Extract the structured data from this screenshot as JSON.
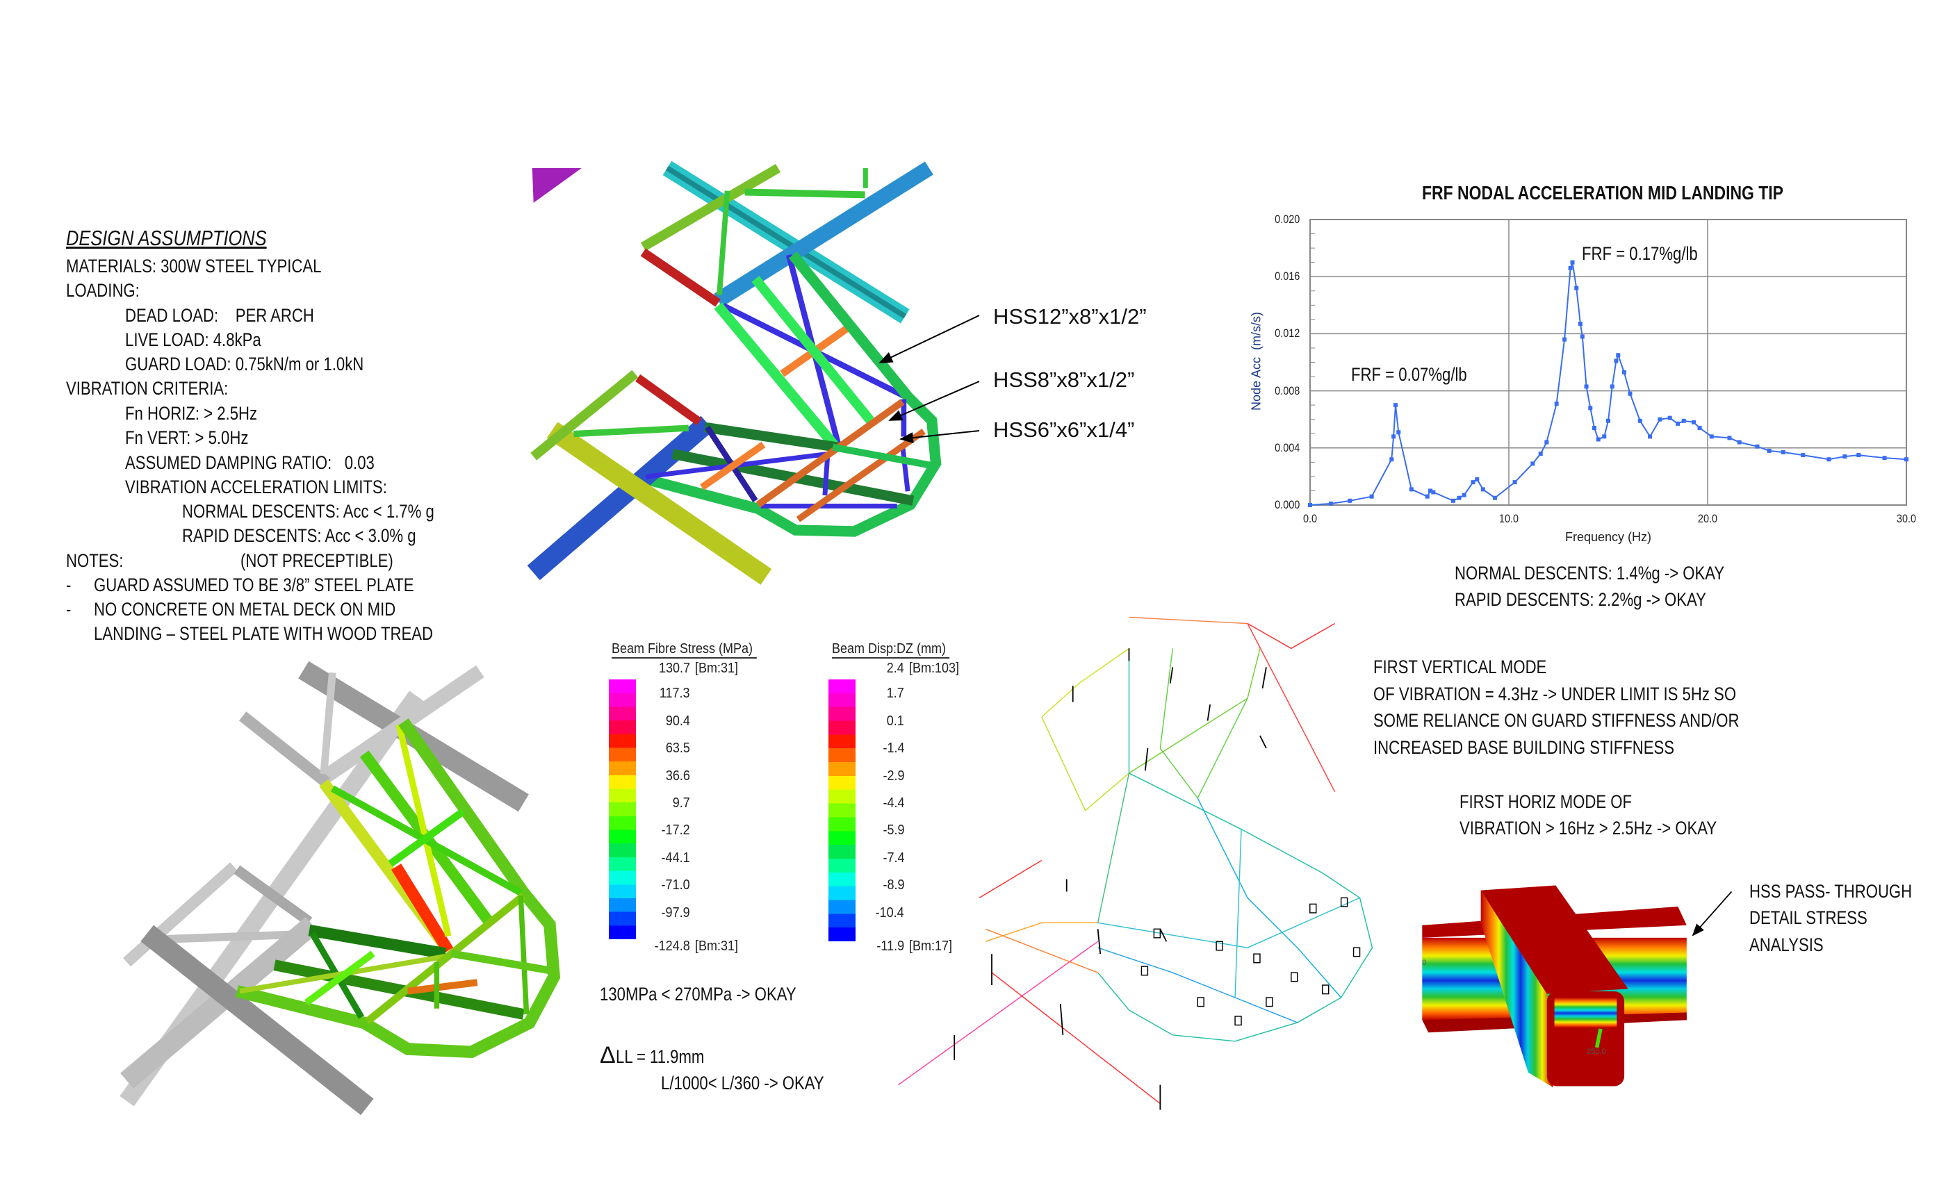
{
  "design_assumptions": {
    "title": "DESIGN ASSUMPTIONS",
    "lines": [
      "MATERIALS: 300W STEEL TYPICAL",
      "LOADING:",
      "DEAD LOAD:    PER ARCH",
      "LIVE LOAD: 4.8kPa",
      "GUARD LOAD: 0.75kN/m or 1.0kN",
      "VIBRATION CRITERIA:",
      "Fn HORIZ: > 2.5Hz",
      "Fn VERT: > 5.0Hz",
      "ASSUMED DAMPING RATIO:   0.03",
      "VIBRATION ACCELERATION LIMITS:",
      "NORMAL DESCENTS: Acc < 1.7% g",
      "RAPID DESCENTS: Acc < 3.0% g",
      "NOTES:",
      "(NOT PRECEPTIBLE)"
    ],
    "bullet": "-",
    "notes": [
      "GUARD ASSUMED TO BE 3/8” STEEL PLATE",
      "NO CONCRETE ON METAL DECK ON MID",
      "LANDING – STEEL PLATE WITH WOOD TREAD"
    ]
  },
  "callouts": {
    "hss1": "HSS12”x8”x1/2”",
    "hss2": "HSS8”x8”x1/2”",
    "hss3": "HSS6”x6”x1/4”"
  },
  "chart_data": {
    "type": "line",
    "title": "FRF NODAL ACCELERATION MID LANDING TIP",
    "xlabel": "Frequency (Hz)",
    "ylabel": "Node Acc  (m/s/s)",
    "xlim": [
      0,
      30
    ],
    "ylim": [
      0,
      0.02
    ],
    "xticks": [
      "0.0",
      "10.0",
      "20.0",
      "30.0"
    ],
    "yticks": [
      "0.000",
      "0.004",
      "0.008",
      "0.012",
      "0.016",
      "0.020"
    ],
    "grid": true,
    "color": "#3a6ef0",
    "x": [
      0,
      1.05,
      2.0,
      3.1,
      4.1,
      4.2,
      4.3,
      4.45,
      5.1,
      5.9,
      6.05,
      6.2,
      7.2,
      7.5,
      7.75,
      8.2,
      8.4,
      8.7,
      9.3,
      10.3,
      11.2,
      11.6,
      11.9,
      12.4,
      12.8,
      13.1,
      13.2,
      13.4,
      13.6,
      13.7,
      13.9,
      14.1,
      14.3,
      14.5,
      14.8,
      15.0,
      15.2,
      15.4,
      15.5,
      15.8,
      16.1,
      16.6,
      17.1,
      17.6,
      18.1,
      18.5,
      18.8,
      19.3,
      19.6,
      20.2,
      21.1,
      21.6,
      22.5,
      23.1,
      23.8,
      24.8,
      26.1,
      26.9,
      27.6,
      28.9,
      30.0
    ],
    "y": [
      0,
      0.0001,
      0.0003,
      0.0006,
      0.0032,
      0.0048,
      0.007,
      0.0051,
      0.0011,
      0.0006,
      0.001,
      0.0009,
      0.0003,
      0.0005,
      0.0007,
      0.0016,
      0.0018,
      0.0011,
      0.0005,
      0.0016,
      0.0029,
      0.0036,
      0.0044,
      0.0071,
      0.0116,
      0.0166,
      0.017,
      0.0152,
      0.0127,
      0.0118,
      0.0083,
      0.0068,
      0.0054,
      0.0046,
      0.0048,
      0.0059,
      0.0083,
      0.0101,
      0.0105,
      0.0093,
      0.0078,
      0.0059,
      0.0048,
      0.006,
      0.0061,
      0.0057,
      0.0059,
      0.0058,
      0.0054,
      0.0048,
      0.0047,
      0.0044,
      0.0041,
      0.0038,
      0.0037,
      0.0035,
      0.0032,
      0.0034,
      0.0035,
      0.0033,
      0.0032
    ],
    "annotations": [
      "FRF = 0.17%g/lb",
      "FRF = 0.07%g/lb"
    ]
  },
  "results": {
    "normal": "NORMAL DESCENTS: 1.4%g -> OKAY",
    "rapid": "RAPID DESCENTS: 2.2%g -> OKAY",
    "stress_check": "130MPa < 270MPa -> OKAY",
    "deflection_symbol": "Δ",
    "deflection": "LL = 11.9mm",
    "deflection_check": "L/1000< L/360 -> OKAY",
    "vert_mode": [
      "FIRST VERTICAL MODE",
      "OF VIBRATION = 4.3Hz -> UNDER LIMIT IS 5Hz SO",
      "SOME RELIANCE ON GUARD STIFFNESS AND/OR",
      "INCREASED BASE BUILDING STIFFNESS"
    ],
    "horiz_mode": [
      "FIRST HORIZ MODE OF",
      "VIBRATION > 16Hz > 2.5Hz -> OKAY"
    ],
    "detail": [
      "HSS PASS- THROUGH",
      "DETAIL STRESS",
      "ANALYSIS"
    ]
  },
  "legends": {
    "colors": [
      "#ff00ff",
      "#ff00d0",
      "#ff0090",
      "#ff0050",
      "#ff1800",
      "#ff6000",
      "#ffa000",
      "#fff000",
      "#c8ff00",
      "#80ff00",
      "#40ff00",
      "#00ff10",
      "#00e850",
      "#00ff90",
      "#00ffe0",
      "#00d8ff",
      "#0090ff",
      "#0040ff",
      "#0000ff"
    ],
    "stress": {
      "title": "Beam Fibre Stress  (MPa)",
      "max": {
        "value": "130.7",
        "tag": " [Bm:31]"
      },
      "min": {
        "value": "-124.8",
        "tag": " [Bm:31]"
      },
      "labels": [
        "117.3",
        "90.4",
        "63.5",
        "36.6",
        "9.7",
        "-17.2",
        "-44.1",
        "-71.0",
        "-97.9"
      ]
    },
    "disp": {
      "title": "Beam Disp:DZ  (mm)",
      "max": {
        "value": "2.4",
        "tag": " [Bm:103]"
      },
      "min": {
        "value": "-11.9",
        "tag": " [Bm:17]"
      },
      "labels": [
        "1.7",
        "0.1",
        "-1.4",
        "-2.9",
        "-4.4",
        "-5.9",
        "-7.4",
        "-8.9",
        "-10.4"
      ]
    }
  },
  "detail_labels": [
    "0",
    "250.0"
  ]
}
